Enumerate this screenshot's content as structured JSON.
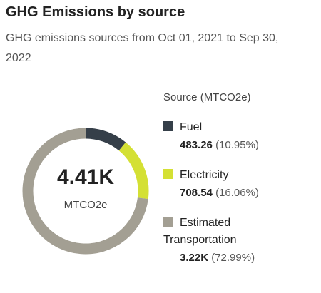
{
  "chart_data": {
    "type": "donut",
    "title": "GHG Emissions by source",
    "subtitle": "GHG emissions sources from Oct 01, 2021 to Sep 30, 2022",
    "center_label": "4.41K",
    "center_unit": "MTCO2e",
    "legend_title": "Source (MTCO2e)",
    "categories": [
      "Fuel",
      "Electricity",
      "Estimated Transportation"
    ],
    "colors": [
      "#353f49",
      "#d4e034",
      "#a39f93"
    ],
    "amounts": [
      "483.26",
      "708.54",
      "3.22K"
    ],
    "values": [
      10.95,
      16.06,
      72.99
    ],
    "value_labels": [
      "(10.95%)",
      "(16.06%)",
      "(72.99%)"
    ]
  }
}
